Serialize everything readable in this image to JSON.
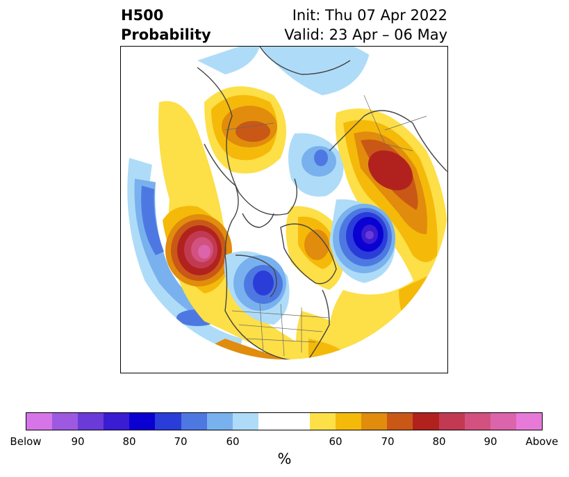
{
  "title": {
    "left_line1": "H500",
    "left_line2": "Probability",
    "right_line1": "Init: Thu 07 Apr 2022",
    "right_line2": "Valid: 23 Apr – 06 May"
  },
  "map": {
    "projection": "north-polar-stereographic",
    "description_icon": "north-hemisphere-map",
    "anomalies": [
      {
        "region": "Gulf of Alaska / NE Pacific",
        "sign": "above",
        "peak_percent": 90
      },
      {
        "region": "Western Russia / Urals",
        "sign": "above",
        "peak_percent": 80
      },
      {
        "region": "Central Siberia",
        "sign": "above",
        "peak_percent": 70
      },
      {
        "region": "Greenland",
        "sign": "above",
        "peak_percent": 70
      },
      {
        "region": "North Atlantic (south of Iceland)",
        "sign": "below",
        "peak_percent": 90
      },
      {
        "region": "Central Canada / Hudson Bay",
        "sign": "below",
        "peak_percent": 80
      },
      {
        "region": "Arctic Ocean / Barents",
        "sign": "below",
        "peak_percent": 70
      },
      {
        "region": "Western Pacific",
        "sign": "below",
        "peak_percent": 70
      }
    ]
  },
  "colorbar": {
    "colors": [
      "#d675e8",
      "#9d59e0",
      "#6a3bd8",
      "#3a1cd3",
      "#0a00d2",
      "#2a3dd9",
      "#4e78e1",
      "#78b1ee",
      "#aedcf8",
      "#ffffff",
      "#ffffff",
      "#fddf47",
      "#f5b90a",
      "#e18c0c",
      "#c95817",
      "#b1221f",
      "#c23a52",
      "#d2517f",
      "#dc64aa",
      "#e77ad8"
    ],
    "tick_labels": [
      "Below",
      "90",
      "80",
      "70",
      "60",
      "60",
      "70",
      "80",
      "90",
      "Above"
    ],
    "units": "%"
  }
}
